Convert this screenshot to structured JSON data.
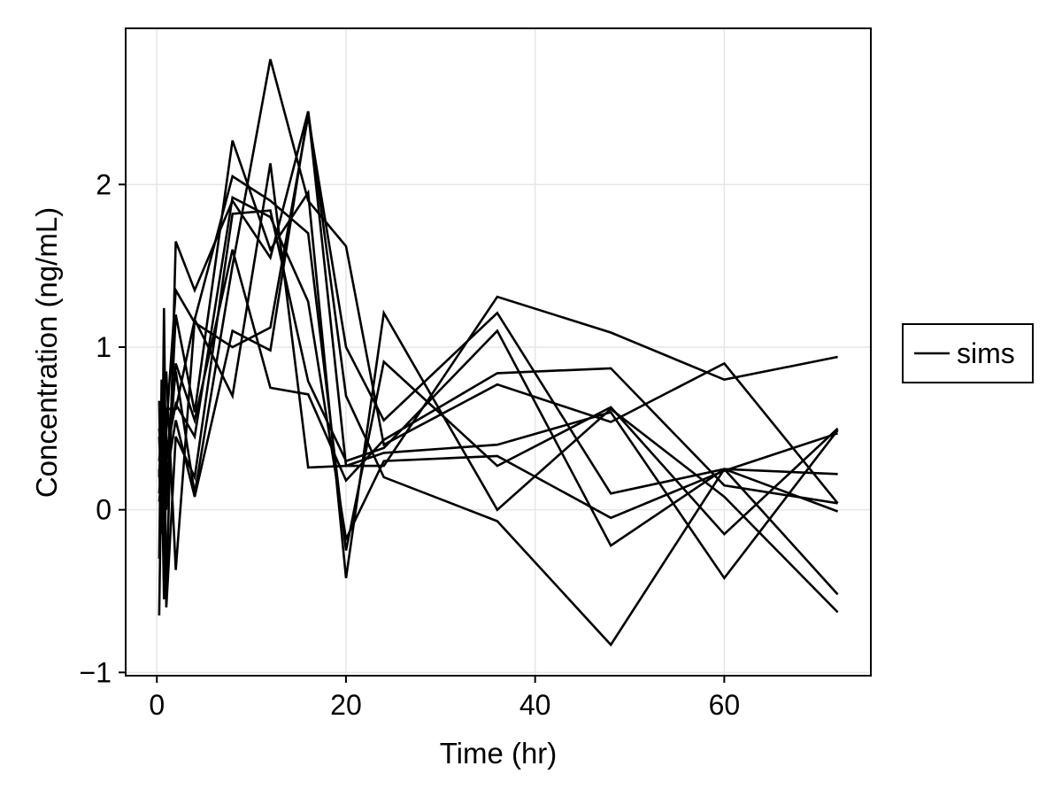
{
  "chart_data": {
    "type": "line",
    "xlabel": "Time (hr)",
    "ylabel": "Concentration (ng/mL)",
    "xlim": [
      -3.3,
      75.5
    ],
    "ylim": [
      -1.02,
      2.96
    ],
    "x_ticks": [
      0,
      20,
      40,
      60
    ],
    "y_ticks": [
      -1,
      0,
      1,
      2
    ],
    "x_tick_labels": [
      "0",
      "20",
      "40",
      "60"
    ],
    "y_tick_labels": [
      "−1",
      "0",
      "1",
      "2"
    ],
    "grid": true,
    "line_color": "#000000",
    "legend": {
      "placement": "right",
      "entries": [
        "sims"
      ]
    },
    "x": [
      0.25,
      0.5,
      0.75,
      1,
      2,
      4,
      8,
      12,
      16,
      20,
      24,
      36,
      48,
      60,
      72
    ],
    "series": [
      {
        "values": [
          0.2,
          0.6,
          0.4,
          -0.55,
          1.65,
          1.35,
          1.9,
          1.55,
          2.45,
          0.7,
          0.2,
          -0.07,
          -0.83,
          0.25,
          0.22
        ]
      },
      {
        "values": [
          0.67,
          -0.15,
          1.24,
          0.0,
          1.2,
          0.6,
          2.27,
          1.6,
          1.95,
          -0.42,
          1.21,
          0.0,
          0.62,
          0.08,
          -0.63
        ]
      },
      {
        "values": [
          -0.3,
          0.8,
          0.4,
          0.2,
          0.55,
          0.08,
          1.1,
          0.98,
          2.45,
          0.27,
          0.27,
          1.31,
          1.09,
          0.8,
          0.94
        ]
      },
      {
        "values": [
          0.45,
          0.1,
          0.7,
          0.85,
          -0.37,
          1.17,
          2.05,
          1.9,
          1.7,
          -0.25,
          0.91,
          0.27,
          0.63,
          -0.15,
          0.5
        ]
      },
      {
        "values": [
          0.3,
          0.5,
          -0.45,
          0.3,
          0.85,
          0.1,
          1.5,
          2.77,
          1.9,
          1.62,
          0.4,
          0.77,
          0.54,
          0.9,
          0.04
        ]
      },
      {
        "values": [
          -0.65,
          0.4,
          -0.3,
          0.5,
          1.35,
          1.15,
          1.0,
          1.12,
          2.42,
          1.0,
          0.55,
          1.21,
          0.1,
          0.25,
          -0.52
        ]
      },
      {
        "values": [
          0.1,
          0.35,
          -0.55,
          0.62,
          0.62,
          1.17,
          0.7,
          2.13,
          0.26,
          0.27,
          0.35,
          0.4,
          0.6,
          -0.42,
          0.49
        ]
      },
      {
        "values": [
          0.5,
          0.3,
          0.85,
          -0.6,
          0.45,
          0.2,
          1.82,
          1.84,
          0.79,
          0.3,
          0.38,
          1.1,
          -0.22,
          0.25,
          -0.01
        ]
      },
      {
        "values": [
          0.25,
          -0.1,
          0.4,
          0.1,
          0.9,
          0.55,
          1.6,
          0.75,
          0.71,
          0.18,
          0.43,
          0.84,
          0.87,
          0.15,
          0.04
        ]
      },
      {
        "values": [
          0.05,
          0.2,
          0.1,
          0.35,
          0.65,
          0.45,
          1.92,
          1.8,
          1.28,
          -0.18,
          0.3,
          0.33,
          -0.05,
          0.24,
          0.47
        ]
      }
    ]
  }
}
